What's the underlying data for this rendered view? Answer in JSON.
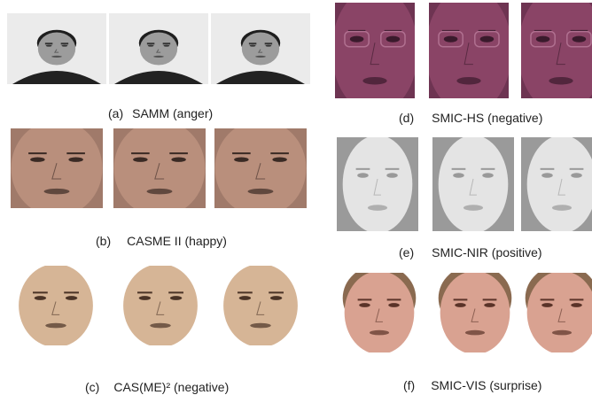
{
  "panels": [
    {
      "label": "(a)",
      "caption": "SAMM (anger)"
    },
    {
      "label": "(b)",
      "caption": "CASME II (happy)"
    },
    {
      "label": "(c)",
      "caption": "CAS(ME)² (negative)"
    },
    {
      "label": "(d)",
      "caption": "SMIC-HS (negative)"
    },
    {
      "label": "(e)",
      "caption": "SMIC-NIR (positive)"
    },
    {
      "label": "(f)",
      "caption": "SMIC-VIS (surprise)"
    }
  ]
}
